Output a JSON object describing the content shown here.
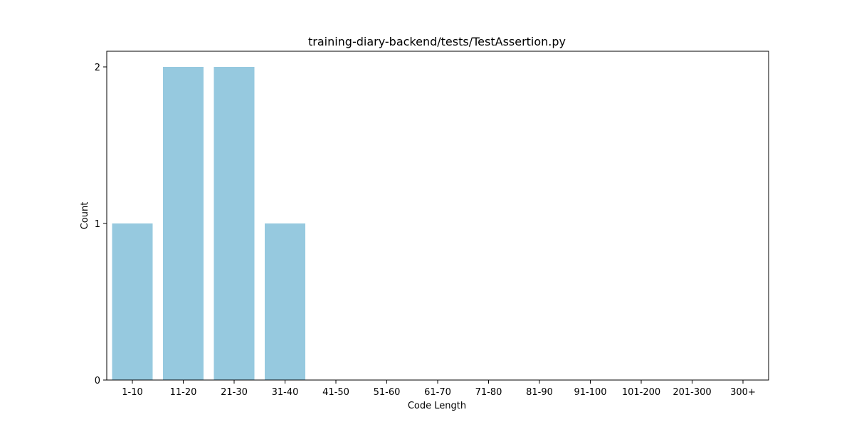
{
  "chart_data": {
    "type": "bar",
    "title": "training-diary-backend/tests/TestAssertion.py",
    "xlabel": "Code Length",
    "ylabel": "Count",
    "categories": [
      "1-10",
      "11-20",
      "21-30",
      "31-40",
      "41-50",
      "51-60",
      "61-70",
      "71-80",
      "81-90",
      "91-100",
      "101-200",
      "201-300",
      "300+"
    ],
    "values": [
      1,
      2,
      2,
      1,
      0,
      0,
      0,
      0,
      0,
      0,
      0,
      0,
      0
    ],
    "ylim": [
      0,
      2.1
    ],
    "yticks": [
      "0",
      "1",
      "2"
    ],
    "grid": false,
    "legend": "none",
    "bar_color": "#96c9df"
  }
}
